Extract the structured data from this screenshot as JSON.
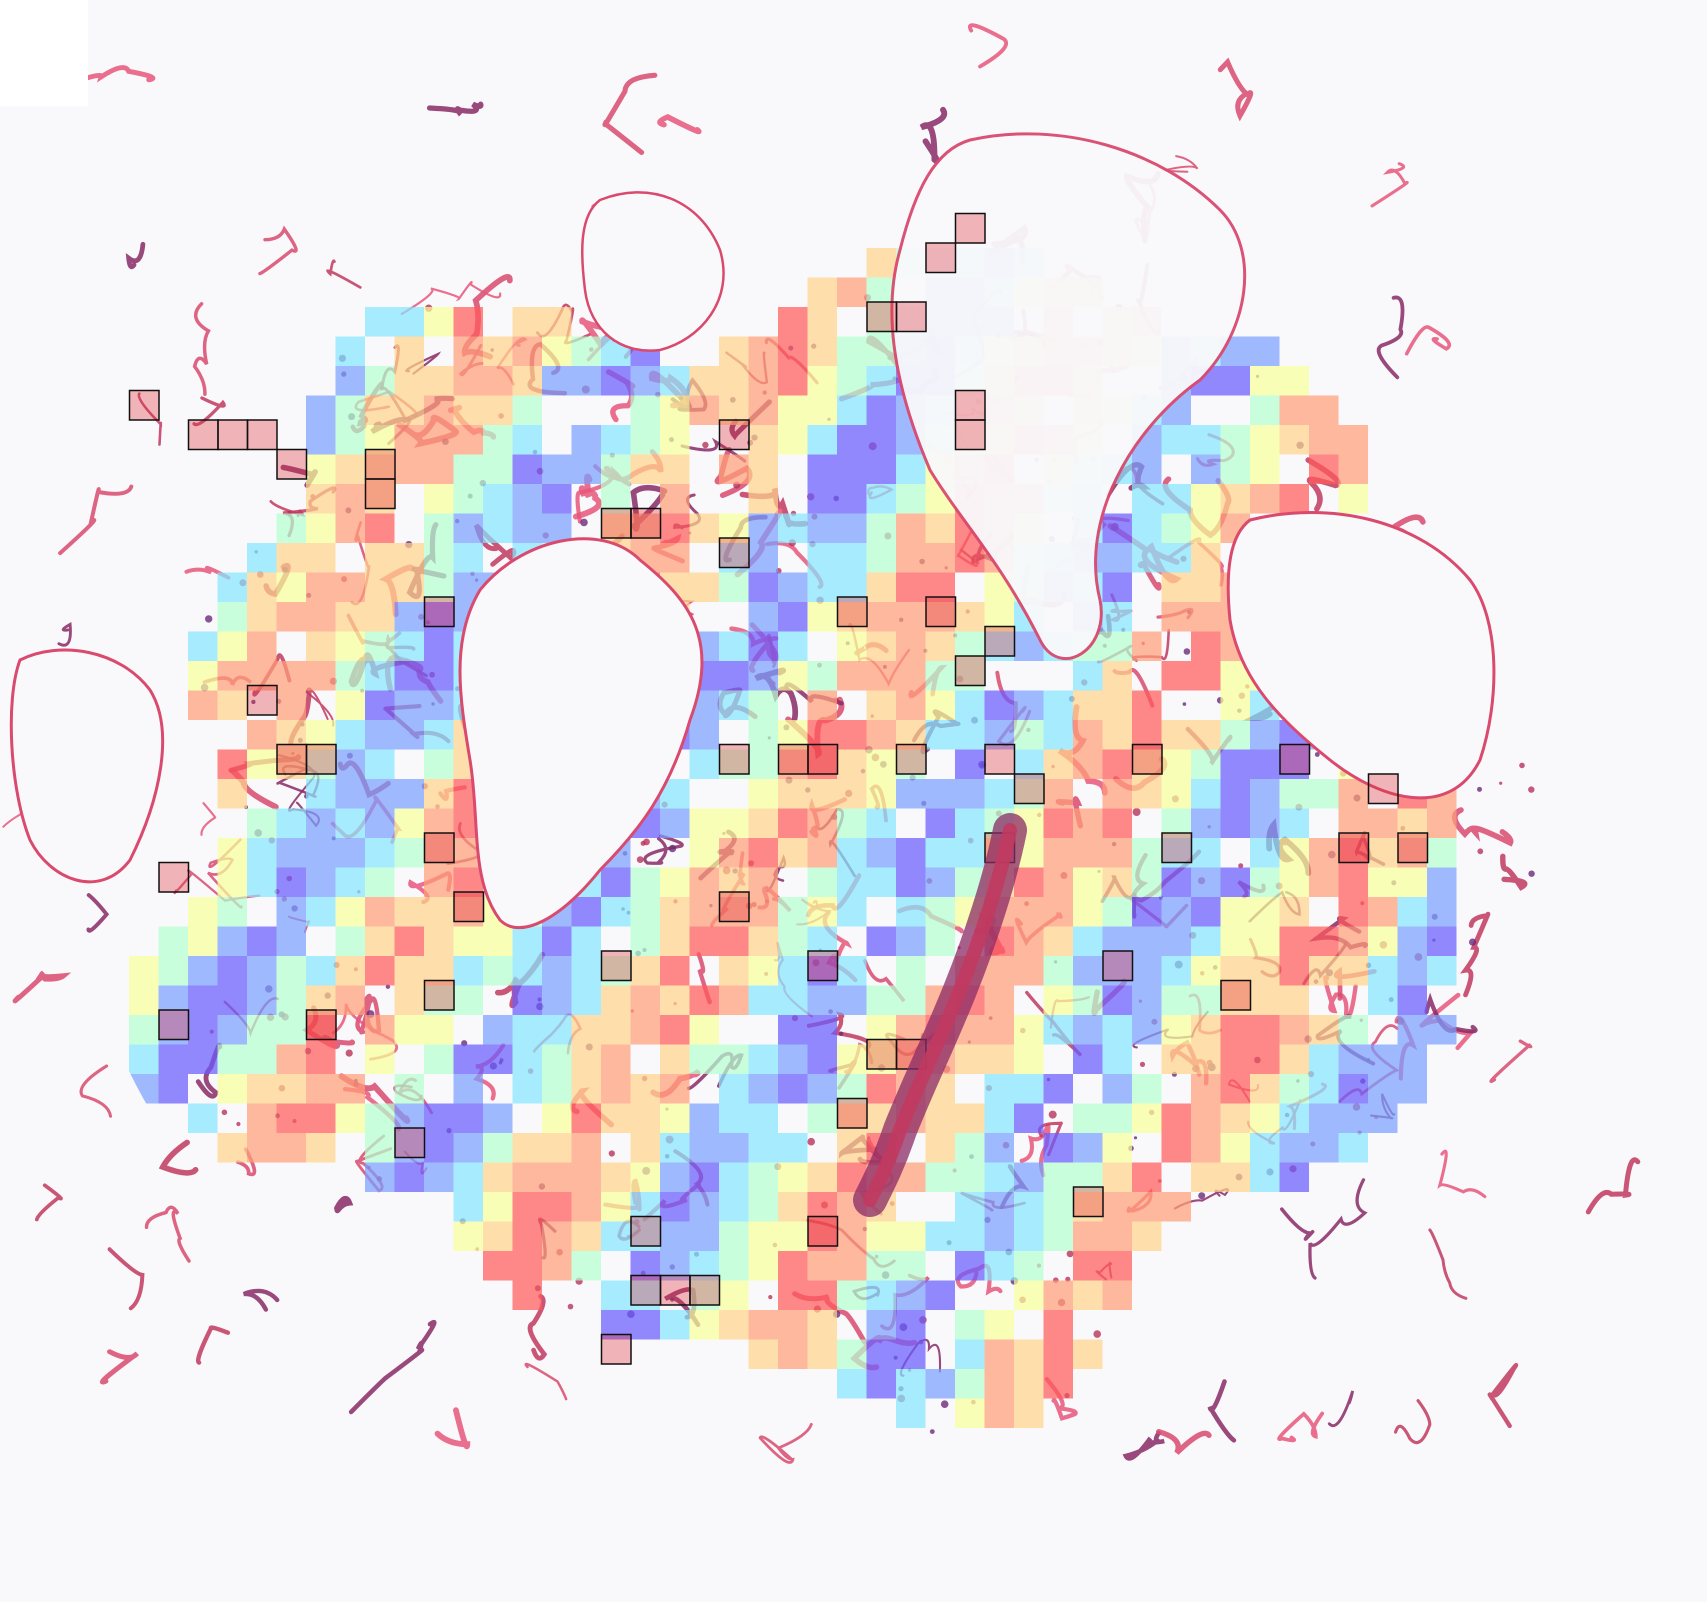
{
  "image": {
    "kind": "whole-slide tissue image with patch-level heatmap overlay",
    "background_color": "#f9f9fb",
    "tissue_stain_colors": [
      "#d94a6e",
      "#e8567a",
      "#c23a5f",
      "#8a2a66"
    ],
    "heatmap_colormap": [
      "#6a5cff",
      "#7aa0ff",
      "#86e6ff",
      "#b4ffd0",
      "#f6ff9a",
      "#ffd28a",
      "#ff9e78",
      "#ff5a5a"
    ],
    "highlight_box_color": "#111111"
  }
}
